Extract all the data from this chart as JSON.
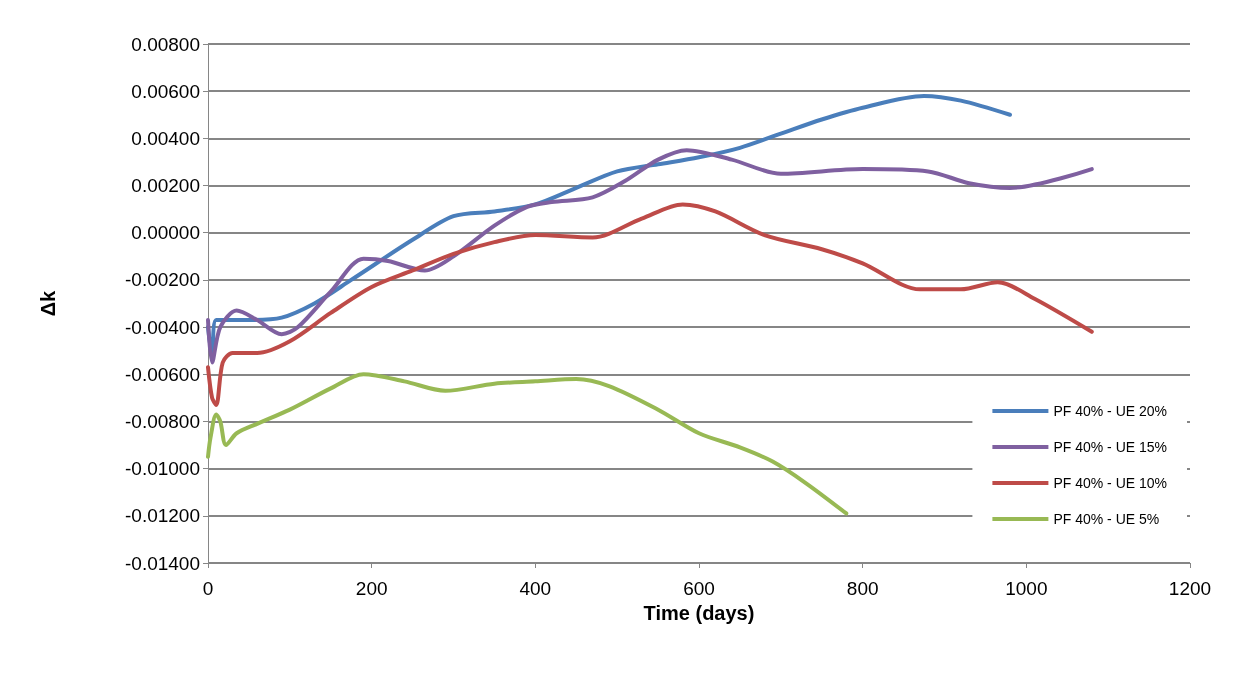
{
  "chart_data": {
    "type": "line",
    "xlabel": "Time (days)",
    "ylabel": "Δk",
    "xlim": [
      0,
      1200
    ],
    "xticks": [
      0,
      200,
      400,
      600,
      800,
      1000,
      1200
    ],
    "ylim": [
      -0.014,
      0.008
    ],
    "yticks": [
      {
        "value": -0.014,
        "label": "-0.01400"
      },
      {
        "value": -0.012,
        "label": "-0.01200"
      },
      {
        "value": -0.01,
        "label": "-0.01000"
      },
      {
        "value": -0.008,
        "label": "-0.00800"
      },
      {
        "value": -0.006,
        "label": "-0.00600"
      },
      {
        "value": -0.004,
        "label": "-0.00400"
      },
      {
        "value": -0.002,
        "label": "-0.00200"
      },
      {
        "value": 0,
        "label": "0.00000"
      },
      {
        "value": 0.002,
        "label": "0.00200"
      },
      {
        "value": 0.004,
        "label": "0.00400"
      },
      {
        "value": 0.006,
        "label": "0.00600"
      },
      {
        "value": 0.008,
        "label": "0.00800"
      }
    ],
    "grid": "y",
    "legend": "right",
    "marker": "none",
    "line_style": "solid",
    "series": [
      {
        "name": "PF 40% - UE 20%",
        "color": "#4a7ebb",
        "x": [
          0,
          5,
          10,
          50,
          90,
          130,
          175,
          250,
          300,
          350,
          400,
          450,
          500,
          550,
          600,
          650,
          700,
          750,
          800,
          875,
          920,
          980
        ],
        "values": [
          -0.004,
          -0.0052,
          -0.0037,
          -0.0037,
          -0.0036,
          -0.003,
          -0.002,
          -0.0003,
          0.0007,
          0.0009,
          0.0012,
          0.0019,
          0.0026,
          0.0029,
          0.0032,
          0.0036,
          0.0042,
          0.0048,
          0.0053,
          0.0058,
          0.0056,
          0.005
        ]
      },
      {
        "name": "PF 40% - UE 15%",
        "color": "#7f60a0",
        "x": [
          0,
          5,
          15,
          35,
          60,
          90,
          110,
          150,
          190,
          220,
          265,
          300,
          350,
          390,
          420,
          470,
          510,
          550,
          585,
          640,
          700,
          800,
          880,
          930,
          980,
          1080
        ],
        "values": [
          -0.0037,
          -0.0055,
          -0.004,
          -0.0033,
          -0.0037,
          -0.0043,
          -0.004,
          -0.0025,
          -0.0011,
          -0.0012,
          -0.0016,
          -0.001,
          0.0003,
          0.0011,
          0.0013,
          0.0015,
          0.0022,
          0.0031,
          0.0035,
          0.0031,
          0.0025,
          0.0027,
          0.0026,
          0.0021,
          0.0019,
          0.0027
        ]
      },
      {
        "name": "PF 40% - UE 10%",
        "color": "#be4b48",
        "x": [
          0,
          5,
          10,
          18,
          30,
          60,
          100,
          150,
          200,
          250,
          300,
          350,
          400,
          470,
          530,
          580,
          620,
          680,
          750,
          800,
          870,
          920,
          965,
          1010,
          1080
        ],
        "values": [
          -0.0057,
          -0.007,
          -0.0073,
          -0.0055,
          -0.0051,
          -0.0051,
          -0.0046,
          -0.0034,
          -0.0023,
          -0.0016,
          -0.0009,
          -0.0004,
          -0.0001,
          -0.0002,
          0.0006,
          0.0012,
          0.0009,
          -0.0001,
          -0.0007,
          -0.0013,
          -0.0024,
          -0.0024,
          -0.0021,
          -0.0028,
          -0.0042
        ]
      },
      {
        "name": "PF 40% - UE 5%",
        "color": "#98b954",
        "x": [
          0,
          3,
          10,
          15,
          22,
          35,
          60,
          100,
          150,
          190,
          240,
          290,
          350,
          400,
          450,
          490,
          550,
          600,
          650,
          690,
          730,
          780
        ],
        "values": [
          -0.0095,
          -0.0087,
          -0.0077,
          -0.008,
          -0.009,
          -0.0085,
          -0.0081,
          -0.0075,
          -0.0066,
          -0.006,
          -0.0063,
          -0.0067,
          -0.0064,
          -0.0063,
          -0.0062,
          -0.0065,
          -0.0075,
          -0.0085,
          -0.0091,
          -0.0097,
          -0.0106,
          -0.0119
        ]
      }
    ]
  }
}
